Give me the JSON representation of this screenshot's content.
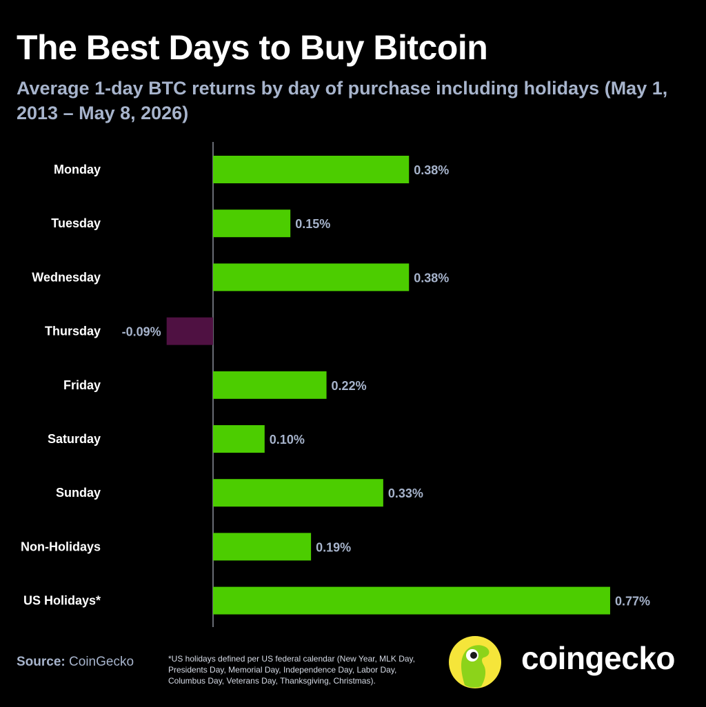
{
  "header": {
    "title": "The Best Days to Buy Bitcoin",
    "subtitle": "Average 1-day BTC returns by day of purchase including holidays (May 1, 2013 – May 8, 2026)"
  },
  "chart_data": {
    "type": "bar",
    "orientation": "horizontal",
    "categories": [
      "Monday",
      "Tuesday",
      "Wednesday",
      "Thursday",
      "Friday",
      "Saturday",
      "Sunday",
      "Non-Holidays",
      "US Holidays*"
    ],
    "values": [
      0.38,
      0.15,
      0.38,
      -0.09,
      0.22,
      0.1,
      0.33,
      0.19,
      0.77
    ],
    "value_labels": [
      "0.38%",
      "0.15%",
      "0.38%",
      "-0.09%",
      "0.22%",
      "0.10%",
      "0.33%",
      "0.19%",
      "0.77%"
    ],
    "unit": "%",
    "xlim": [
      -0.09,
      0.77
    ],
    "grid": false,
    "legend": "none",
    "colors": {
      "positive": "#4ccd00",
      "negative": "#4f1142",
      "zero_line": "#8a8f9a",
      "value_label": "#a7b4cc"
    }
  },
  "footer": {
    "source_label": "Source:",
    "source_value": "CoinGecko",
    "footnote": "*US holidays defined per US federal calendar (New Year, MLK Day, Presidents Day, Memorial Day, Independence Day, Labor Day, Columbus Day, Veterans Day, Thanksgiving, Christmas).",
    "brand_name": "coingecko",
    "logo_icon": "coingecko-gecko-logo-icon"
  }
}
